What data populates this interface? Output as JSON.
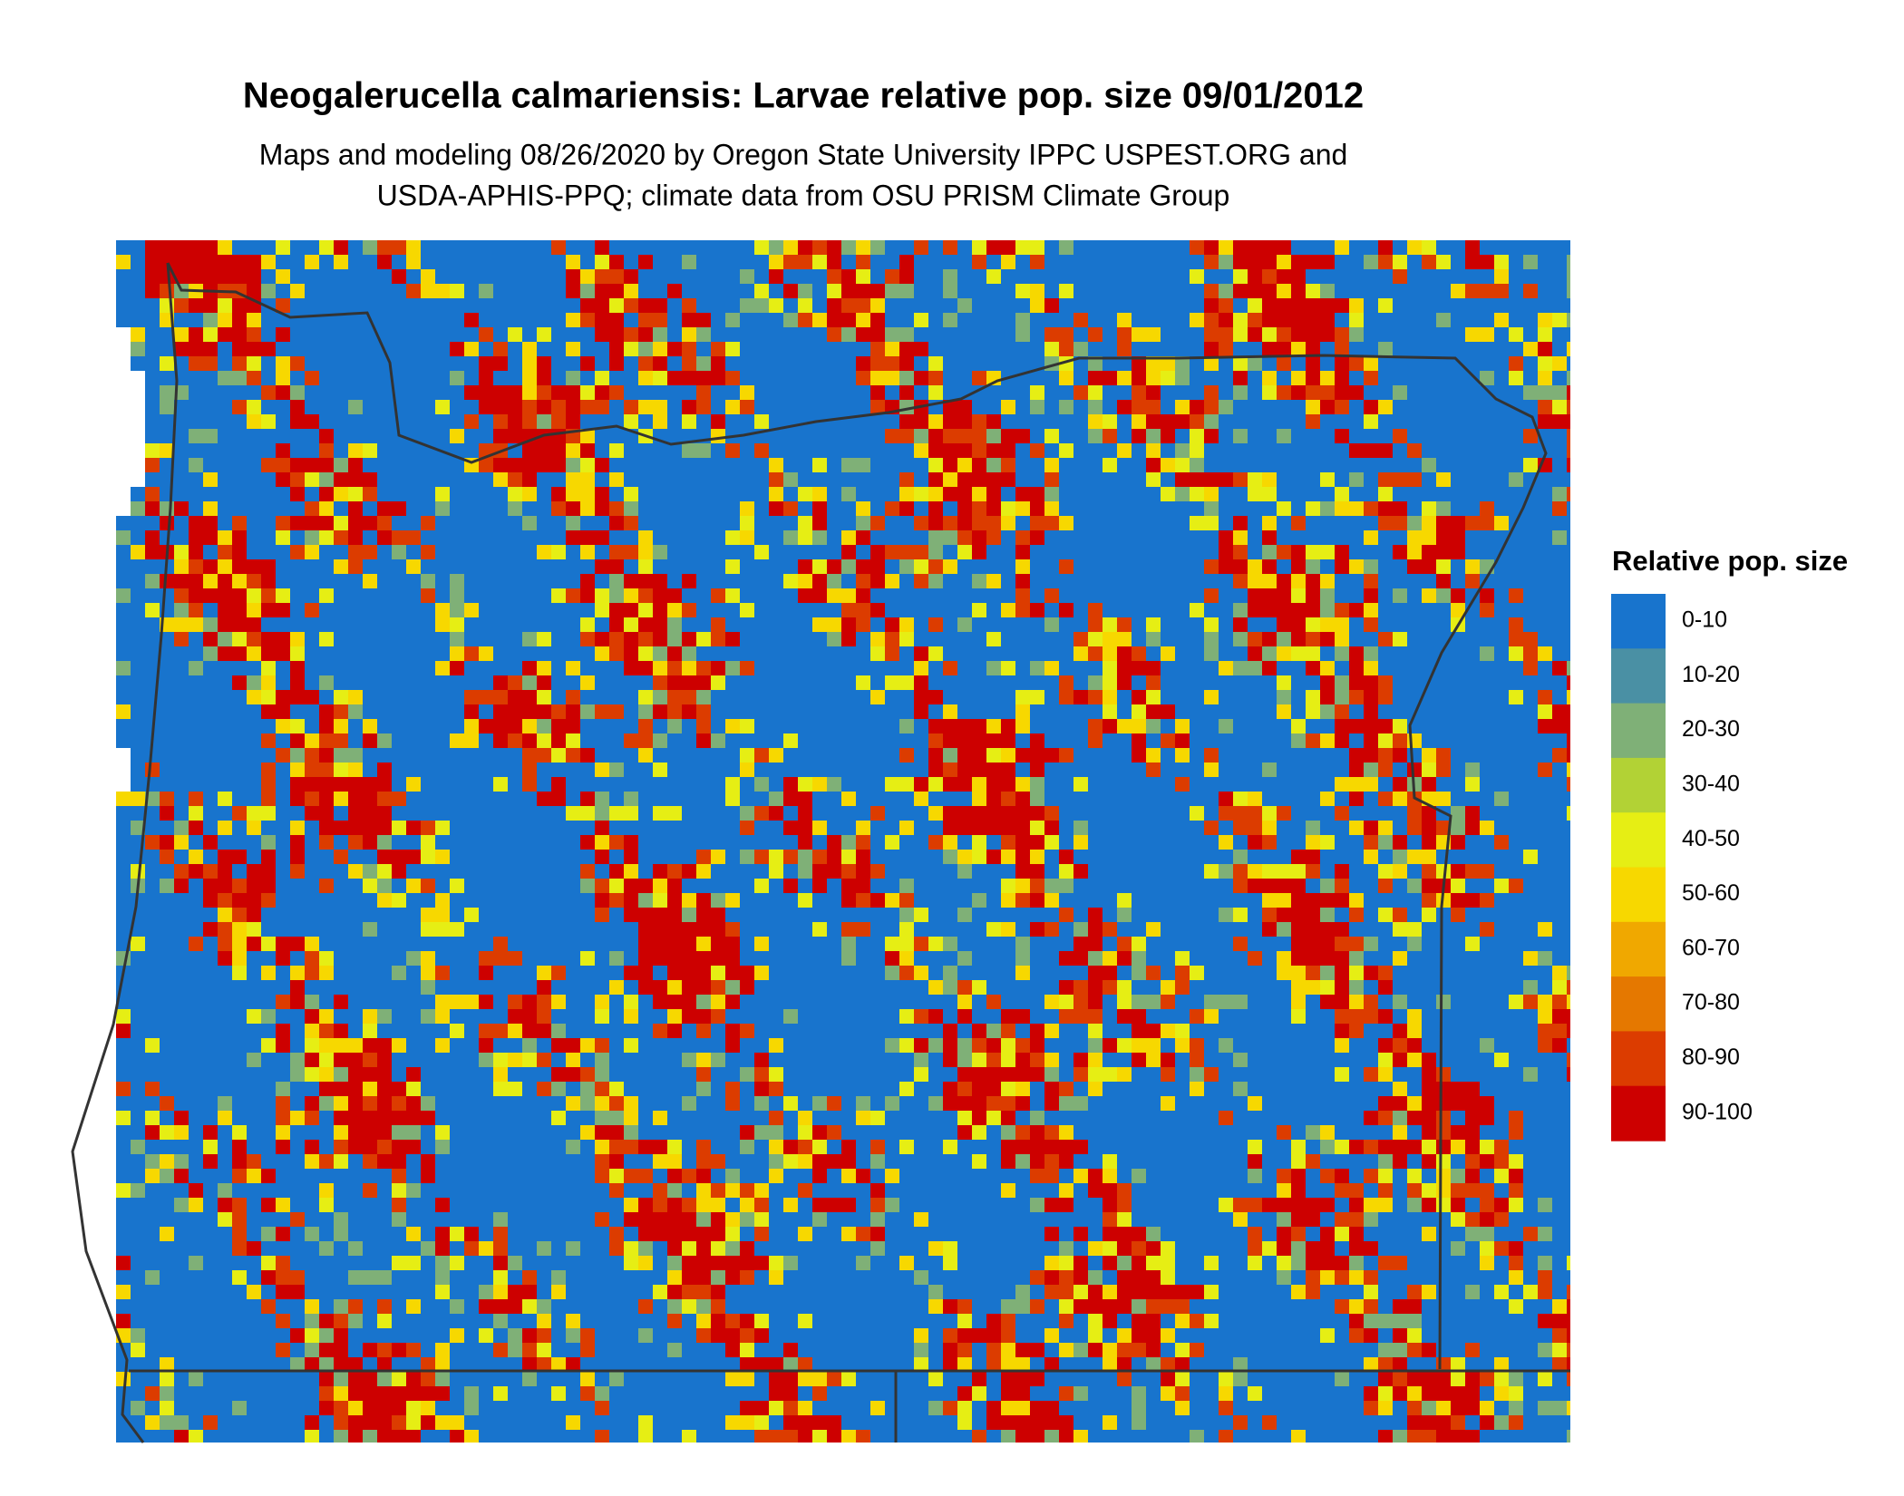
{
  "map": {
    "title": "Neogalerucella calmariensis: Larvae relative pop. size 09/01/2012",
    "subtitle": [
      "Maps and modeling 08/26/2020 by Oregon State University IPPC USPEST.ORG and",
      "USDA-APHIS-PPQ; climate data from OSU PRISM Climate Group"
    ],
    "legend": {
      "title": "Relative pop. size",
      "items": [
        {
          "label": "0-10",
          "color": "#1874cd"
        },
        {
          "label": "10-20",
          "color": "#4a90a4"
        },
        {
          "label": "20-30",
          "color": "#7fb077"
        },
        {
          "label": "30-40",
          "color": "#b2d235"
        },
        {
          "label": "40-50",
          "color": "#e6ee14"
        },
        {
          "label": "50-60",
          "color": "#f7d800"
        },
        {
          "label": "60-70",
          "color": "#f0a800"
        },
        {
          "label": "70-80",
          "color": "#e57800"
        },
        {
          "label": "80-90",
          "color": "#dc3c00"
        },
        {
          "label": "90-100",
          "color": "#cd0000"
        }
      ]
    }
  }
}
